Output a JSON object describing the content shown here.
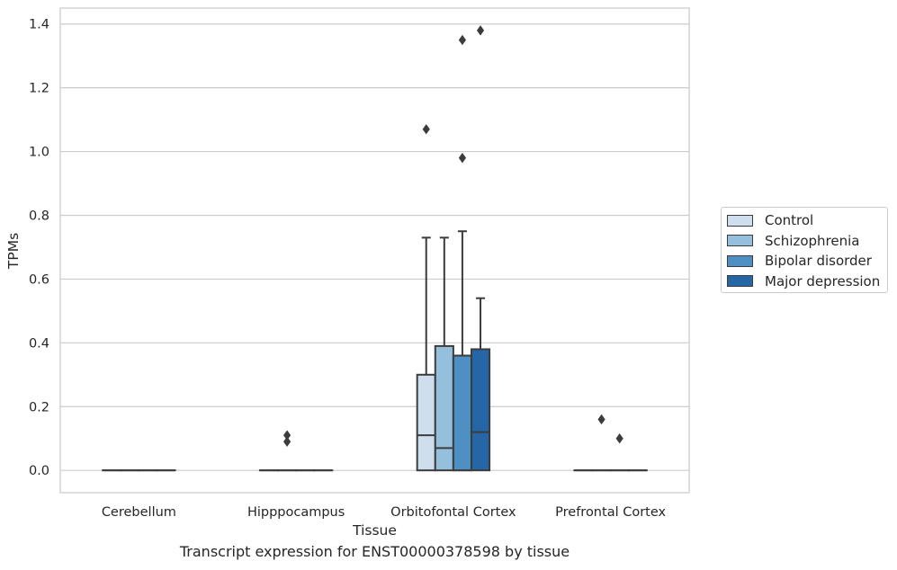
{
  "chart_data": {
    "type": "box",
    "xlabel": "Tissue",
    "ylabel": "TPMs",
    "caption": "Transcript expression for ENST00000378598 by tissue",
    "categories": [
      "Cerebellum",
      "Hipppocampus",
      "Orbitofontal Cortex",
      "Prefrontal Cortex"
    ],
    "ylim": [
      -0.07,
      1.45
    ],
    "yticks": [
      0.0,
      0.2,
      0.4,
      0.6,
      0.8,
      1.0,
      1.2,
      1.4
    ],
    "ytick_labels": [
      "0.0",
      "0.2",
      "0.4",
      "0.6",
      "0.8",
      "1.0",
      "1.2",
      "1.4"
    ],
    "grid": "horizontal",
    "legend_position": "right",
    "series": [
      {
        "name": "Control",
        "color": "#cfdeee",
        "boxes": [
          {
            "q1": 0,
            "median": 0,
            "q3": 0,
            "whisker_low": 0,
            "whisker_high": 0,
            "outliers": []
          },
          {
            "q1": 0,
            "median": 0,
            "q3": 0,
            "whisker_low": 0,
            "whisker_high": 0,
            "outliers": []
          },
          {
            "q1": 0,
            "median": 0.11,
            "q3": 0.3,
            "whisker_low": 0,
            "whisker_high": 0.73,
            "outliers": [
              1.07
            ]
          },
          {
            "q1": 0,
            "median": 0,
            "q3": 0,
            "whisker_low": 0,
            "whisker_high": 0,
            "outliers": []
          }
        ]
      },
      {
        "name": "Schizophrenia",
        "color": "#94c0dd",
        "boxes": [
          {
            "q1": 0,
            "median": 0,
            "q3": 0,
            "whisker_low": 0,
            "whisker_high": 0,
            "outliers": []
          },
          {
            "q1": 0,
            "median": 0,
            "q3": 0,
            "whisker_low": 0,
            "whisker_high": 0,
            "outliers": [
              0.09,
              0.11
            ]
          },
          {
            "q1": 0,
            "median": 0.07,
            "q3": 0.39,
            "whisker_low": 0,
            "whisker_high": 0.73,
            "outliers": []
          },
          {
            "q1": 0,
            "median": 0,
            "q3": 0,
            "whisker_low": 0,
            "whisker_high": 0,
            "outliers": [
              0.16
            ]
          }
        ]
      },
      {
        "name": "Bipolar disorder",
        "color": "#4e90c3",
        "boxes": [
          {
            "q1": 0,
            "median": 0,
            "q3": 0,
            "whisker_low": 0,
            "whisker_high": 0,
            "outliers": []
          },
          {
            "q1": 0,
            "median": 0,
            "q3": 0,
            "whisker_low": 0,
            "whisker_high": 0,
            "outliers": []
          },
          {
            "q1": 0,
            "median": 0,
            "q3": 0.36,
            "whisker_low": 0,
            "whisker_high": 0.75,
            "outliers": [
              0.98,
              1.35
            ]
          },
          {
            "q1": 0,
            "median": 0,
            "q3": 0,
            "whisker_low": 0,
            "whisker_high": 0,
            "outliers": [
              0.1
            ]
          }
        ]
      },
      {
        "name": "Major depression",
        "color": "#2466a6",
        "boxes": [
          {
            "q1": 0,
            "median": 0,
            "q3": 0,
            "whisker_low": 0,
            "whisker_high": 0,
            "outliers": []
          },
          {
            "q1": 0,
            "median": 0,
            "q3": 0,
            "whisker_low": 0,
            "whisker_high": 0,
            "outliers": []
          },
          {
            "q1": 0,
            "median": 0.12,
            "q3": 0.38,
            "whisker_low": 0,
            "whisker_high": 0.54,
            "outliers": [
              1.38
            ]
          },
          {
            "q1": 0,
            "median": 0,
            "q3": 0,
            "whisker_low": 0,
            "whisker_high": 0,
            "outliers": []
          }
        ]
      }
    ]
  }
}
